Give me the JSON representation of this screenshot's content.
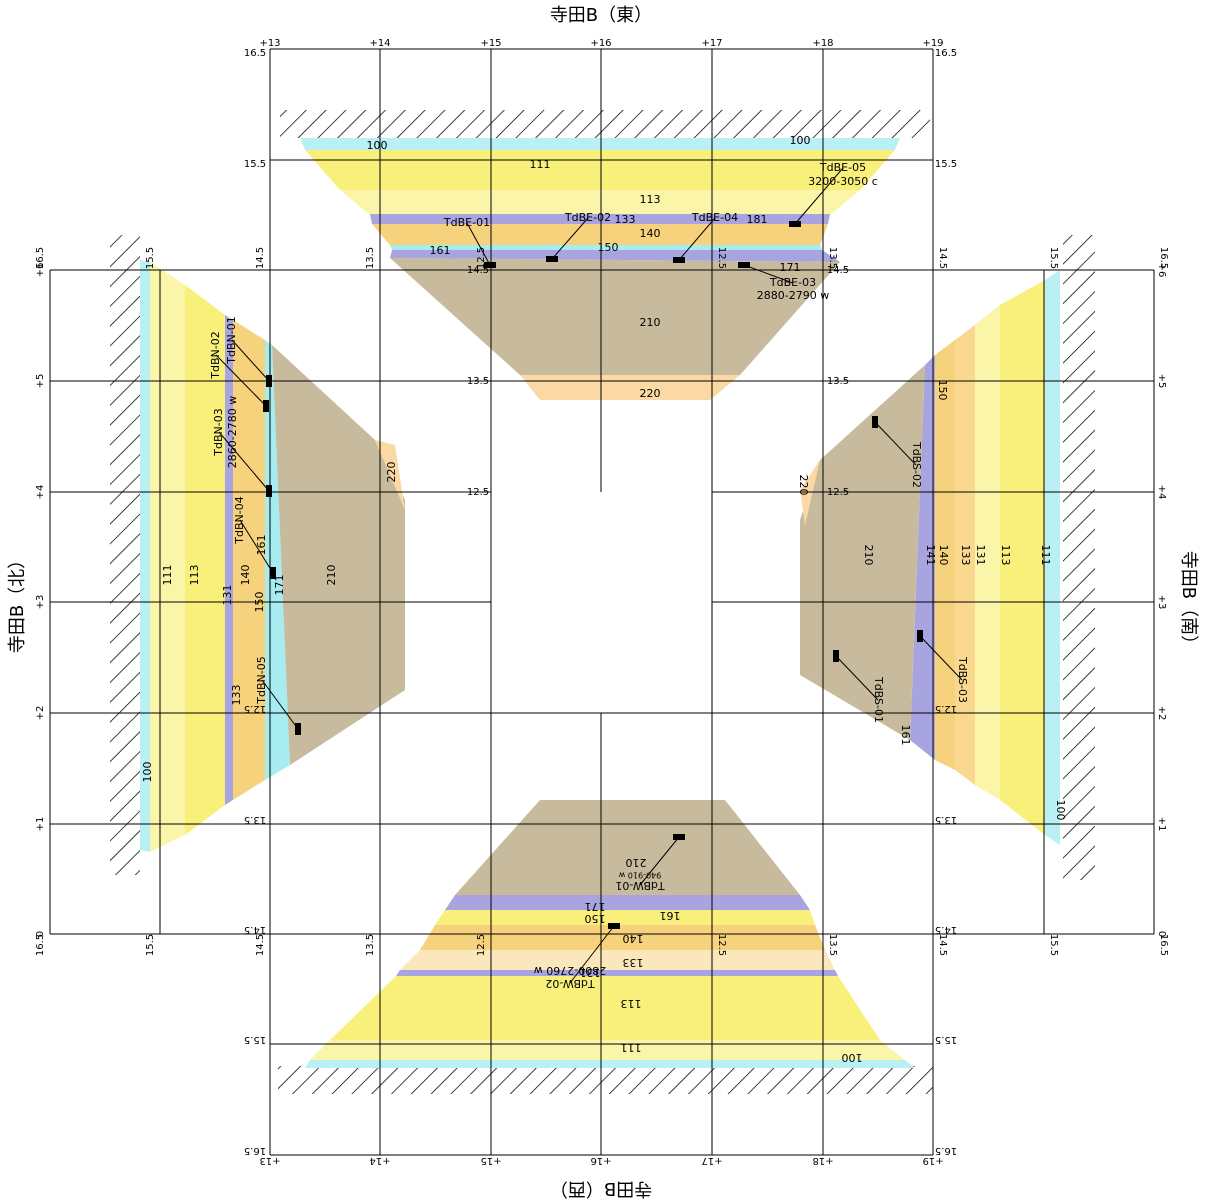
{
  "titles": {
    "east": "寺田B（東）",
    "north": "寺田B（北）",
    "south": "寺田B（南）",
    "west": "寺田B（西）"
  },
  "grid": {
    "stations": [
      "+13",
      "+14",
      "+15",
      "+16",
      "+17",
      "+18",
      "+19"
    ],
    "side_stations": [
      "+6",
      "+5",
      "+4",
      "+3",
      "+2",
      "+1",
      "0"
    ],
    "elevations": [
      "16.5",
      "15.5",
      "14.5",
      "13.5",
      "12.5"
    ]
  },
  "east": {
    "layers": [
      "100",
      "100",
      "111",
      "113",
      "133",
      "181",
      "140",
      "150",
      "161",
      "171",
      "210",
      "220"
    ],
    "samples": [
      {
        "id": "TdBE-01"
      },
      {
        "id": "TdBE-02"
      },
      {
        "id": "TdBE-04"
      },
      {
        "id": "TdBE-05",
        "note": "3200-3050 c"
      },
      {
        "id": "TdBE-03",
        "note": "2880-2790 w"
      }
    ]
  },
  "north": {
    "layers": [
      "100",
      "111",
      "113",
      "131",
      "133",
      "140",
      "161",
      "171",
      "150",
      "210",
      "220"
    ],
    "samples": [
      {
        "id": "TdBN-01"
      },
      {
        "id": "TdBN-02"
      },
      {
        "id": "TdBN-03",
        "note": "2860-2780 w"
      },
      {
        "id": "TdBN-04"
      },
      {
        "id": "TdBN-05"
      }
    ]
  },
  "south": {
    "layers": [
      "100",
      "111",
      "113",
      "131",
      "133",
      "140",
      "141",
      "150",
      "161",
      "210",
      "220"
    ],
    "samples": [
      {
        "id": "TdBS-01"
      },
      {
        "id": "TdBS-02"
      },
      {
        "id": "TdBS-03"
      }
    ]
  },
  "west": {
    "layers": [
      "100",
      "111",
      "113",
      "131",
      "133",
      "140",
      "150",
      "161",
      "171",
      "210"
    ],
    "samples": [
      {
        "id": "TdBW-01",
        "note": "940-910 w"
      },
      {
        "id": "TdBW-02",
        "note": "2800-2760 w"
      }
    ]
  }
}
